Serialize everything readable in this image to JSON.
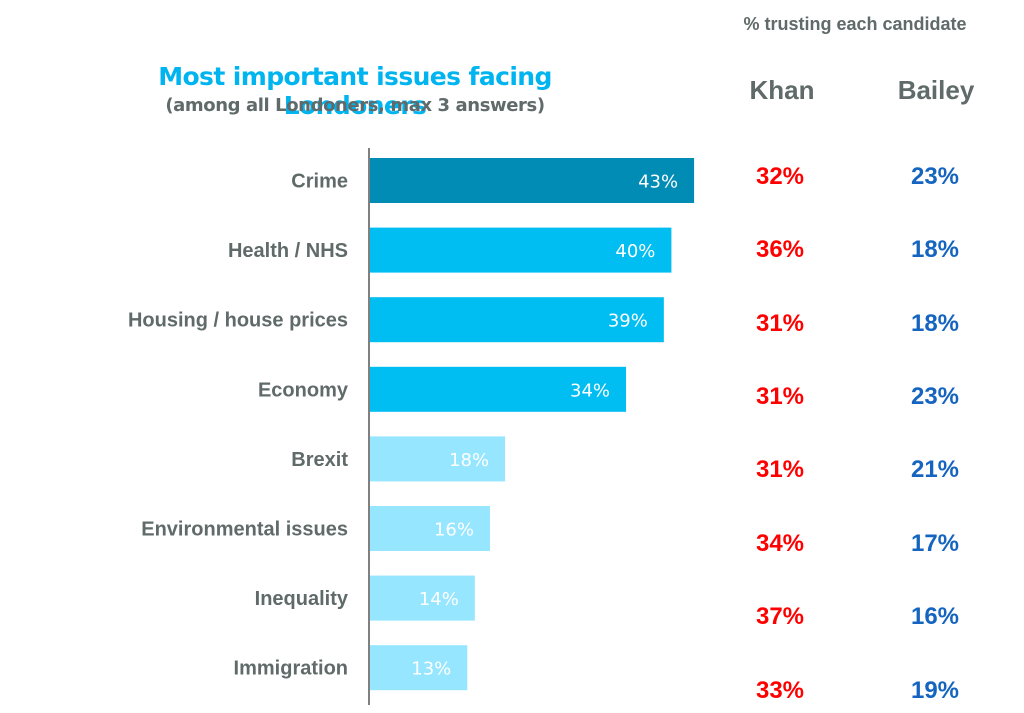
{
  "chart_data": {
    "type": "bar",
    "orientation": "horizontal",
    "title": "Most important issues facing Londoners",
    "subtitle": "(among all Londoners, max 3 answers)",
    "categories": [
      "Crime",
      "Health / NHS",
      "Housing / house prices",
      "Economy",
      "Brexit",
      "Environmental issues",
      "Inequality",
      "Immigration"
    ],
    "values": [
      43,
      40,
      39,
      34,
      18,
      16,
      14,
      13
    ],
    "value_labels": [
      "43%",
      "40%",
      "39%",
      "34%",
      "18%",
      "16%",
      "14%",
      "13%"
    ],
    "bar_colors": [
      "#008cb4",
      "#00bdf2",
      "#00bdf2",
      "#00bdf2",
      "#96e6ff",
      "#96e6ff",
      "#96e6ff",
      "#96e6ff"
    ],
    "xlim": [
      0,
      100
    ],
    "grid": false,
    "xlabel": "",
    "ylabel": "",
    "side_table": {
      "header": "% trusting each candidate",
      "columns": [
        {
          "name": "Khan",
          "color": "#ff0000",
          "values": [
            32,
            36,
            31,
            31,
            31,
            34,
            37,
            33
          ],
          "labels": [
            "32%",
            "36%",
            "31%",
            "31%",
            "31%",
            "34%",
            "37%",
            "33%"
          ]
        },
        {
          "name": "Bailey",
          "color": "#1565c0",
          "values": [
            23,
            18,
            18,
            23,
            21,
            17,
            16,
            19
          ],
          "labels": [
            "23%",
            "18%",
            "18%",
            "23%",
            "21%",
            "17%",
            "16%",
            "19%"
          ]
        }
      ]
    }
  }
}
